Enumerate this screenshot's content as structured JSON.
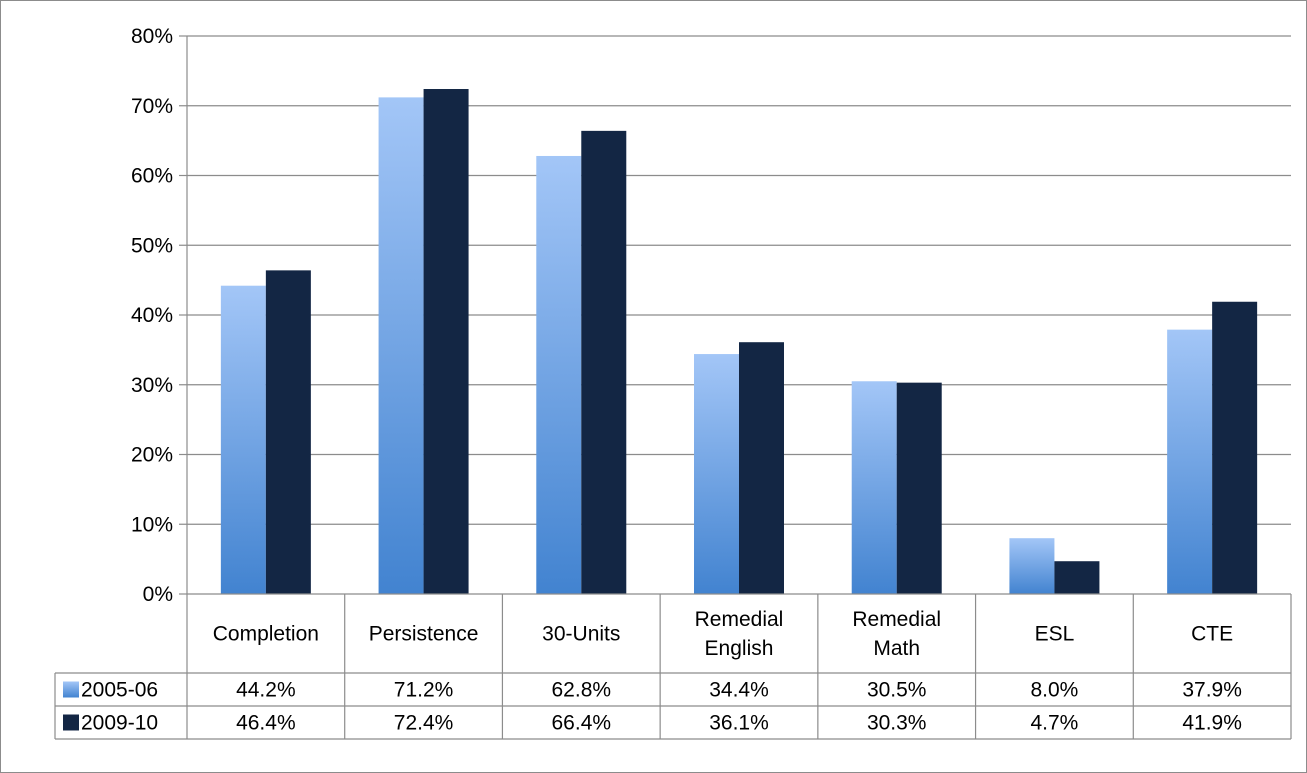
{
  "chart_data": {
    "type": "bar",
    "categories": [
      "Completion",
      "Persistence",
      "30-Units",
      "Remedial English",
      "Remedial Math",
      "ESL",
      "CTE"
    ],
    "category_lines": [
      [
        "Completion"
      ],
      [
        "Persistence"
      ],
      [
        "30-Units"
      ],
      [
        "Remedial",
        "English"
      ],
      [
        "Remedial",
        "Math"
      ],
      [
        "ESL"
      ],
      [
        "CTE"
      ]
    ],
    "series": [
      {
        "name": "2005-06",
        "values": [
          44.2,
          71.2,
          62.8,
          34.4,
          30.5,
          8.0,
          37.9
        ],
        "labels": [
          "44.2%",
          "71.2%",
          "62.8%",
          "34.4%",
          "30.5%",
          "8.0%",
          "37.9%"
        ],
        "color_top": "#a3c6f7",
        "color_bottom": "#4283d0"
      },
      {
        "name": "2009-10",
        "values": [
          46.4,
          72.4,
          66.4,
          36.1,
          30.3,
          4.7,
          41.9
        ],
        "labels": [
          "46.4%",
          "72.4%",
          "66.4%",
          "36.1%",
          "30.3%",
          "4.7%",
          "41.9%"
        ],
        "color": "#132644"
      }
    ],
    "ylim": [
      0,
      80
    ],
    "yticks": [
      0,
      10,
      20,
      30,
      40,
      50,
      60,
      70,
      80
    ],
    "ytick_labels": [
      "0%",
      "10%",
      "20%",
      "30%",
      "40%",
      "50%",
      "60%",
      "70%",
      "80%"
    ],
    "grid": true,
    "legend": "data-table",
    "title": "",
    "xlabel": "",
    "ylabel": ""
  }
}
